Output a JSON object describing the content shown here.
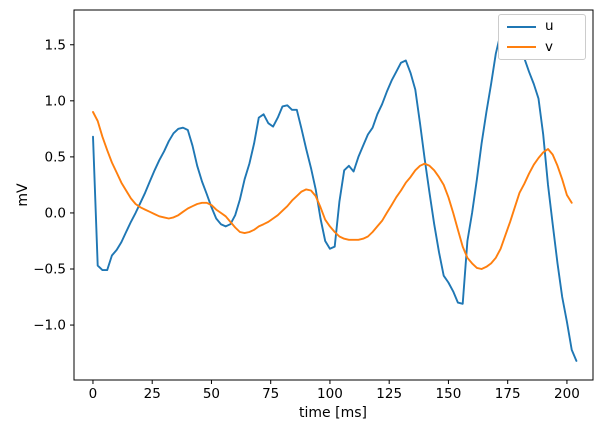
{
  "figure": {
    "background": "#ffffff",
    "text_color": "#000000"
  },
  "axes": {
    "xlabel": "time [ms]",
    "ylabel": "mV",
    "x_ticks": [
      0,
      25,
      50,
      75,
      100,
      125,
      150,
      175,
      200
    ],
    "x_tick_labels": [
      "0",
      "25",
      "50",
      "75",
      "100",
      "125",
      "150",
      "175",
      "200"
    ],
    "y_ticks": [
      -1.0,
      -0.5,
      0.0,
      0.5,
      1.0,
      1.5
    ],
    "y_tick_labels": [
      "−1.0",
      "−0.5",
      "0.0",
      "0.5",
      "1.0",
      "1.5"
    ],
    "spine_color": "#000000"
  },
  "legend": {
    "position": "upper right",
    "border_color": "#cccccc",
    "background": "#ffffff",
    "entries": [
      {
        "label": "u",
        "color": "#1f77b4"
      },
      {
        "label": "v",
        "color": "#ff7f0e"
      }
    ]
  },
  "chart_data": {
    "type": "line",
    "title": "",
    "xlabel": "time [ms]",
    "ylabel": "mV",
    "xlim": [
      -8,
      211
    ],
    "ylim": [
      -1.49,
      1.81
    ],
    "grid": false,
    "legend_position": "upper right",
    "series": [
      {
        "name": "u",
        "color": "#1f77b4",
        "x": [
          0,
          2,
          4,
          6,
          8,
          10,
          12,
          14,
          16,
          18,
          20,
          22,
          24,
          26,
          28,
          30,
          32,
          34,
          36,
          38,
          40,
          42,
          44,
          46,
          48,
          50,
          52,
          54,
          56,
          58,
          60,
          62,
          64,
          66,
          68,
          70,
          72,
          74,
          76,
          78,
          80,
          82,
          84,
          86,
          88,
          90,
          92,
          94,
          96,
          98,
          100,
          102,
          104,
          106,
          108,
          110,
          112,
          114,
          116,
          118,
          120,
          122,
          124,
          126,
          128,
          130,
          132,
          134,
          136,
          138,
          140,
          142,
          144,
          146,
          148,
          150,
          152,
          154,
          156,
          158,
          160,
          162,
          164,
          166,
          168,
          170,
          172,
          174,
          176,
          178,
          180,
          182,
          184,
          186,
          188,
          190,
          192,
          194,
          196,
          198,
          200,
          202,
          204
        ],
        "values": [
          0.68,
          -0.47,
          -0.51,
          -0.51,
          -0.38,
          -0.33,
          -0.26,
          -0.17,
          -0.08,
          0.0,
          0.09,
          0.18,
          0.28,
          0.38,
          0.47,
          0.55,
          0.64,
          0.71,
          0.75,
          0.76,
          0.74,
          0.6,
          0.42,
          0.28,
          0.17,
          0.05,
          -0.05,
          -0.1,
          -0.12,
          -0.1,
          -0.02,
          0.12,
          0.3,
          0.44,
          0.62,
          0.85,
          0.88,
          0.8,
          0.77,
          0.85,
          0.95,
          0.96,
          0.92,
          0.92,
          0.75,
          0.57,
          0.4,
          0.21,
          -0.05,
          -0.25,
          -0.32,
          -0.3,
          0.1,
          0.38,
          0.42,
          0.37,
          0.5,
          0.6,
          0.7,
          0.76,
          0.88,
          0.97,
          1.08,
          1.18,
          1.26,
          1.34,
          1.36,
          1.25,
          1.1,
          0.8,
          0.48,
          0.18,
          -0.1,
          -0.35,
          -0.56,
          -0.62,
          -0.7,
          -0.8,
          -0.81,
          -0.25,
          0.0,
          0.3,
          0.62,
          0.9,
          1.15,
          1.42,
          1.6,
          1.67,
          1.68,
          1.6,
          1.47,
          1.38,
          1.26,
          1.15,
          1.02,
          0.7,
          0.25,
          -0.1,
          -0.45,
          -0.75,
          -0.97,
          -1.22,
          -1.32
        ]
      },
      {
        "name": "v",
        "color": "#ff7f0e",
        "x": [
          0,
          2,
          4,
          6,
          8,
          10,
          12,
          14,
          16,
          18,
          20,
          22,
          24,
          26,
          28,
          30,
          32,
          34,
          36,
          38,
          40,
          42,
          44,
          46,
          48,
          50,
          52,
          54,
          56,
          58,
          60,
          62,
          64,
          66,
          68,
          70,
          72,
          74,
          76,
          78,
          80,
          82,
          84,
          86,
          88,
          90,
          92,
          94,
          96,
          98,
          100,
          102,
          104,
          106,
          108,
          110,
          112,
          114,
          116,
          118,
          120,
          122,
          124,
          126,
          128,
          130,
          132,
          134,
          136,
          138,
          140,
          142,
          144,
          146,
          148,
          150,
          152,
          154,
          156,
          158,
          160,
          162,
          164,
          166,
          168,
          170,
          172,
          174,
          176,
          178,
          180,
          182,
          184,
          186,
          188,
          190,
          192,
          194,
          196,
          198,
          200,
          202
        ],
        "values": [
          0.9,
          0.82,
          0.68,
          0.56,
          0.45,
          0.36,
          0.27,
          0.2,
          0.13,
          0.08,
          0.05,
          0.03,
          0.01,
          -0.01,
          -0.03,
          -0.04,
          -0.05,
          -0.04,
          -0.02,
          0.01,
          0.04,
          0.06,
          0.08,
          0.09,
          0.09,
          0.07,
          0.03,
          0.0,
          -0.03,
          -0.08,
          -0.13,
          -0.17,
          -0.18,
          -0.17,
          -0.15,
          -0.12,
          -0.1,
          -0.08,
          -0.05,
          -0.02,
          0.02,
          0.06,
          0.11,
          0.15,
          0.19,
          0.21,
          0.2,
          0.15,
          0.05,
          -0.06,
          -0.12,
          -0.17,
          -0.21,
          -0.23,
          -0.24,
          -0.24,
          -0.24,
          -0.23,
          -0.21,
          -0.17,
          -0.12,
          -0.07,
          0.0,
          0.07,
          0.14,
          0.2,
          0.27,
          0.32,
          0.38,
          0.42,
          0.44,
          0.42,
          0.38,
          0.32,
          0.25,
          0.14,
          0.0,
          -0.15,
          -0.3,
          -0.4,
          -0.45,
          -0.49,
          -0.5,
          -0.48,
          -0.45,
          -0.4,
          -0.32,
          -0.2,
          -0.08,
          0.05,
          0.18,
          0.26,
          0.35,
          0.43,
          0.49,
          0.54,
          0.57,
          0.52,
          0.42,
          0.3,
          0.16,
          0.09
        ]
      }
    ]
  }
}
